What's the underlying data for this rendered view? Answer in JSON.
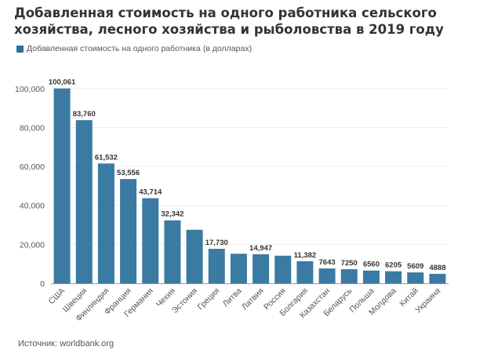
{
  "title": "Добавленная стоимость на одного работника сельского хозяйства, лесного хозяйства и рыболовства в 2019 году",
  "legend": {
    "label": "Добавленная стоимость на одного работника (в долларах)"
  },
  "source": "Источник: worldbank.org",
  "colors": {
    "bar": "#3a7aa3",
    "swatch": "#2f6f9a",
    "grid": "#ececec",
    "axis": "#999999"
  },
  "chart_data": {
    "type": "bar",
    "title": "Добавленная стоимость на одного работника сельского хозяйства, лесного хозяйства и рыболовства в 2019 году",
    "categories": [
      "США",
      "Швеция",
      "Финляндия",
      "Франция",
      "Германия",
      "Чехия",
      "Эстония",
      "Греция",
      "Литва",
      "Латвия",
      "Россия",
      "Болгария",
      "Казахстан",
      "Беларусь",
      "Польша",
      "Молдова",
      "Китай",
      "Украина"
    ],
    "series": [
      {
        "name": "Добавленная стоимость на одного работника (в долларах)",
        "values": [
          100061,
          83760,
          61532,
          53556,
          43714,
          32342,
          27500,
          17730,
          15200,
          14947,
          14200,
          11382,
          7643,
          7250,
          6560,
          6205,
          5609,
          4888
        ]
      }
    ],
    "data_labels": [
      "100,061",
      "83,760",
      "61,532",
      "53,556",
      "43,714",
      "32,342",
      "",
      "17,730",
      "",
      "14,947",
      "",
      "11,382",
      "7643",
      "7250",
      "6560",
      "6205",
      "5609",
      "4888"
    ],
    "yticks": [
      "0",
      "20,000",
      "40,000",
      "60,000",
      "80,000",
      "100,000"
    ],
    "ylim": [
      0,
      110000
    ],
    "grid": true,
    "legend_position": "top-left"
  }
}
